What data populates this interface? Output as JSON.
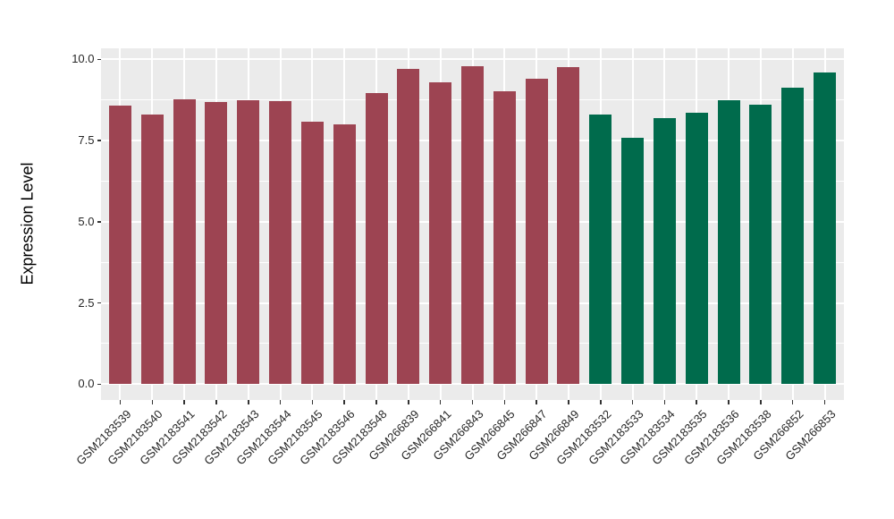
{
  "figure": {
    "background_color": "#FFFFFF",
    "panel_background_color": "#EBEBEB",
    "gridline_color": "#FFFFFF",
    "tick_mark_color": "#333333",
    "axis_text_color": "#262626",
    "axis_title_color": "#000000"
  },
  "chart_data": {
    "type": "bar",
    "title": "",
    "xlabel": "",
    "ylabel": "Expression Level",
    "ylim": [
      -0.5,
      10.35
    ],
    "yticks": [
      0.0,
      2.5,
      5.0,
      7.5,
      10.0
    ],
    "ytick_labels": [
      "0.0",
      "2.5",
      "5.0",
      "7.5",
      "10.0"
    ],
    "yticks_minor": [
      1.25,
      3.75,
      6.25,
      8.75
    ],
    "grid": "major+minor, white on gray panel",
    "legend_position": "none",
    "categories": [
      "GSM2183539",
      "GSM2183540",
      "GSM2183541",
      "GSM2183542",
      "GSM2183543",
      "GSM2183544",
      "GSM2183545",
      "GSM2183546",
      "GSM2183548",
      "GSM266839",
      "GSM266841",
      "GSM266843",
      "GSM266845",
      "GSM266847",
      "GSM266849",
      "GSM2183532",
      "GSM2183533",
      "GSM2183534",
      "GSM2183535",
      "GSM2183536",
      "GSM2183538",
      "GSM266852",
      "GSM266853"
    ],
    "values": [
      8.57,
      8.31,
      8.78,
      8.69,
      8.73,
      8.7,
      8.08,
      8.0,
      8.96,
      9.71,
      9.3,
      9.79,
      9.02,
      9.41,
      9.76,
      8.31,
      7.59,
      8.2,
      8.36,
      8.73,
      8.61,
      9.12,
      9.6
    ],
    "bar_group_index": [
      0,
      0,
      0,
      0,
      0,
      0,
      0,
      0,
      0,
      0,
      0,
      0,
      0,
      0,
      0,
      1,
      1,
      1,
      1,
      1,
      1,
      1,
      1
    ],
    "group_colors": [
      "#9D4452",
      "#006B4C"
    ]
  }
}
